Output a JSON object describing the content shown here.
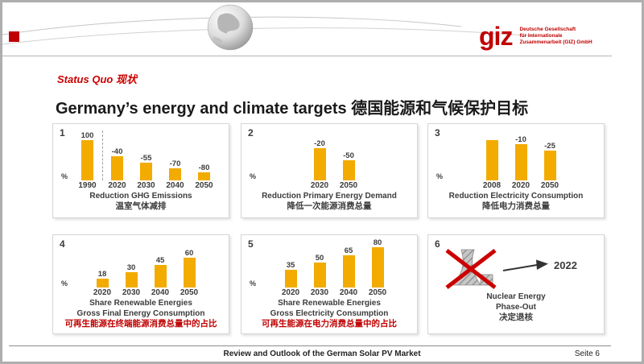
{
  "header": {
    "logo_text": "giz",
    "logo_subtext_lines": [
      "Deutsche Gesellschaft",
      "für Internationale",
      "Zusammenarbeit (GIZ) GmbH"
    ]
  },
  "title": {
    "kicker": "Status Quo 现状",
    "main": "Germany’s energy and climate targets 德国能源和气候保护目标"
  },
  "colors": {
    "brand_red": "#C00000",
    "bar": "#F3AB00",
    "text_dark": "#3C3C3C",
    "caption_highlight": "#C00000"
  },
  "chart_data": [
    {
      "panel": "1",
      "type": "bar",
      "title": "Reduction GHG Emissions",
      "title_zh": "温室气体减排",
      "ylabel": "%",
      "categories": [
        "1990",
        "2020",
        "2030",
        "2040",
        "2050"
      ],
      "values": [
        100,
        -40,
        -55,
        -70,
        -80
      ],
      "bar_labels": [
        "100",
        "-40",
        "-55",
        "-70",
        "-80"
      ],
      "bar_heights_pct": [
        100,
        60,
        45,
        30,
        20
      ],
      "separator_after_first": true
    },
    {
      "panel": "2",
      "type": "bar",
      "title": "Reduction Primary Energy Demand",
      "title_zh": "降低一次能源消费总量",
      "ylabel": "%",
      "categories": [
        "2020",
        "2050"
      ],
      "values": [
        -20,
        -50
      ],
      "bar_labels": [
        "-20",
        "-50"
      ],
      "bar_heights_pct": [
        80,
        50
      ],
      "separator_after_first": false
    },
    {
      "panel": "3",
      "type": "bar",
      "title": "Reduction Electricity Consumption",
      "title_zh": "降低电力消费总量",
      "ylabel": "%",
      "categories": [
        "2008",
        "2020",
        "2050"
      ],
      "values": [
        100,
        -10,
        -25
      ],
      "bar_labels": [
        "",
        "-10",
        "-25"
      ],
      "bar_heights_pct": [
        100,
        90,
        75
      ],
      "separator_after_first": false
    },
    {
      "panel": "4",
      "type": "bar",
      "title": "Share Renewable Energies",
      "subtitle": "Gross Final Energy Consumption",
      "title_zh": "可再生能源在终端能源消费总量中的占比",
      "title_zh_color": "#C00000",
      "ylabel": "%",
      "categories": [
        "2020",
        "2030",
        "2040",
        "2050"
      ],
      "values": [
        18,
        30,
        45,
        60
      ],
      "bar_labels": [
        "18",
        "30",
        "45",
        "60"
      ],
      "bar_heights_pct": [
        23,
        38,
        56,
        75
      ],
      "separator_after_first": false
    },
    {
      "panel": "5",
      "type": "bar",
      "title": "Share Renewable Energies",
      "subtitle": "Gross Electricity Consumption",
      "title_zh": "可再生能源在电力消费总量中的占比",
      "title_zh_color": "#C00000",
      "ylabel": "%",
      "categories": [
        "2020",
        "2030",
        "2040",
        "2050"
      ],
      "values": [
        35,
        50,
        65,
        80
      ],
      "bar_labels": [
        "35",
        "50",
        "65",
        "80"
      ],
      "bar_heights_pct": [
        44,
        62,
        81,
        100
      ],
      "separator_after_first": false
    }
  ],
  "nuclear_panel": {
    "panel": "6",
    "title": "Nuclear Energy",
    "subtitle": "Phase-Out",
    "title_zh": "决定退核",
    "year": "2022"
  },
  "footer": {
    "center": "Review and Outlook of the German Solar PV Market",
    "right": "Seite 6"
  }
}
